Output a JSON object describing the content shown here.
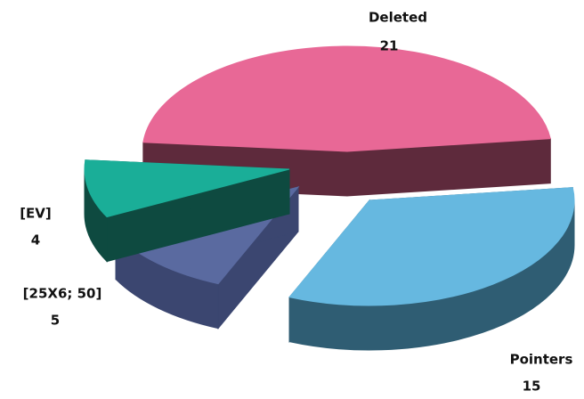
{
  "chart_data": {
    "type": "pie",
    "categories": [
      "Deleted",
      "Pointers",
      "[25X6; 50]",
      "[EV]"
    ],
    "values": [
      21,
      15,
      5,
      4
    ],
    "colors": [
      "#e86896",
      "#66b8e0",
      "#5a6aa0",
      "#1aae98"
    ],
    "side_colors": [
      "#5e2a3c",
      "#2f5d73",
      "#3b4670",
      "#0e4a40"
    ]
  }
}
